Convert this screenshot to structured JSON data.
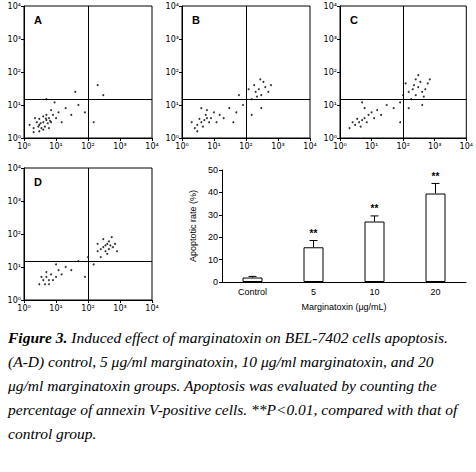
{
  "chart_data": [
    {
      "type": "scatter",
      "title": "A",
      "log": true,
      "grid": false,
      "color": "#000000",
      "marker": "dot",
      "xlim": [
        1,
        10000
      ],
      "ylim": [
        1,
        10000
      ],
      "xticks": [
        {
          "value": 1,
          "label": "10⁰"
        },
        {
          "value": 10,
          "label": "10¹"
        },
        {
          "value": 100,
          "label": "10²"
        },
        {
          "value": 1000,
          "label": "10³"
        },
        {
          "value": 10000,
          "label": "10⁴"
        }
      ],
      "yticks": [
        {
          "value": 1,
          "label": "10⁰"
        },
        {
          "value": 10,
          "label": "10¹"
        },
        {
          "value": 100,
          "label": "10²"
        },
        {
          "value": 1000,
          "label": "10³"
        },
        {
          "value": 10000,
          "label": "10⁴"
        }
      ],
      "quadrant": {
        "x": 100,
        "y": 15
      },
      "points": [
        [
          2,
          2
        ],
        [
          3,
          2.5
        ],
        [
          4,
          3
        ],
        [
          5,
          3.5
        ],
        [
          3.5,
          2
        ],
        [
          6,
          4
        ],
        [
          2.5,
          3
        ],
        [
          4.5,
          2.2
        ],
        [
          5.5,
          2.8
        ],
        [
          3,
          3.8
        ],
        [
          7,
          3
        ],
        [
          4,
          4.5
        ],
        [
          2,
          1.5
        ],
        [
          6,
          2
        ],
        [
          8,
          5
        ],
        [
          3,
          1.6
        ],
        [
          5,
          5
        ],
        [
          10,
          4
        ],
        [
          2.2,
          4
        ],
        [
          4,
          1.8
        ],
        [
          12,
          6
        ],
        [
          7,
          7
        ],
        [
          15,
          3
        ],
        [
          20,
          8
        ],
        [
          30,
          5
        ],
        [
          50,
          10
        ],
        [
          9,
          12
        ],
        [
          150,
          3
        ],
        [
          300,
          20
        ],
        [
          5,
          15
        ],
        [
          1.5,
          2.5
        ],
        [
          6.5,
          3.3
        ],
        [
          3.3,
          2.8
        ],
        [
          4.8,
          3.9
        ],
        [
          2.8,
          2.2
        ],
        [
          40,
          25
        ],
        [
          80,
          6
        ],
        [
          200,
          40
        ]
      ]
    },
    {
      "type": "scatter",
      "title": "B",
      "log": true,
      "grid": false,
      "color": "#000000",
      "marker": "dot",
      "xlim": [
        1,
        10000
      ],
      "ylim": [
        1,
        10000
      ],
      "xticks": [
        {
          "value": 1,
          "label": "10⁰"
        },
        {
          "value": 10,
          "label": "10¹"
        },
        {
          "value": 100,
          "label": "10²"
        },
        {
          "value": 1000,
          "label": "10³"
        },
        {
          "value": 10000,
          "label": "10⁴"
        }
      ],
      "yticks": [
        {
          "value": 1,
          "label": "10⁰"
        },
        {
          "value": 10,
          "label": "10¹"
        },
        {
          "value": 100,
          "label": "10²"
        },
        {
          "value": 1000,
          "label": "10³"
        },
        {
          "value": 10000,
          "label": "10⁴"
        }
      ],
      "quadrant": {
        "x": 100,
        "y": 15
      },
      "points": [
        [
          3,
          2.5
        ],
        [
          4,
          3
        ],
        [
          5,
          3.5
        ],
        [
          2.5,
          2
        ],
        [
          6,
          4
        ],
        [
          3.5,
          3.8
        ],
        [
          7,
          3
        ],
        [
          4.5,
          2.2
        ],
        [
          2,
          3
        ],
        [
          5.5,
          5
        ],
        [
          8,
          4
        ],
        [
          10,
          6
        ],
        [
          3,
          1.6
        ],
        [
          12,
          3
        ],
        [
          6,
          7
        ],
        [
          15,
          5
        ],
        [
          20,
          4
        ],
        [
          30,
          8
        ],
        [
          50,
          6
        ],
        [
          80,
          10
        ],
        [
          150,
          15
        ],
        [
          200,
          25
        ],
        [
          250,
          30
        ],
        [
          300,
          20
        ],
        [
          400,
          35
        ],
        [
          180,
          40
        ],
        [
          350,
          50
        ],
        [
          500,
          25
        ],
        [
          120,
          30
        ],
        [
          220,
          18
        ],
        [
          280,
          60
        ],
        [
          600,
          40
        ],
        [
          150,
          5
        ],
        [
          300,
          8
        ],
        [
          60,
          20
        ],
        [
          40,
          3
        ],
        [
          4,
          8
        ]
      ]
    },
    {
      "type": "scatter",
      "title": "C",
      "log": true,
      "grid": false,
      "color": "#000000",
      "marker": "dot",
      "xlim": [
        1,
        10000
      ],
      "ylim": [
        1,
        10000
      ],
      "xticks": [
        {
          "value": 1,
          "label": "10⁰"
        },
        {
          "value": 10,
          "label": "10¹"
        },
        {
          "value": 100,
          "label": "10²"
        },
        {
          "value": 1000,
          "label": "10³"
        },
        {
          "value": 10000,
          "label": "10⁴"
        }
      ],
      "yticks": [
        {
          "value": 1,
          "label": "10⁰"
        },
        {
          "value": 10,
          "label": "10¹"
        },
        {
          "value": 100,
          "label": "10²"
        },
        {
          "value": 1000,
          "label": "10³"
        },
        {
          "value": 10000,
          "label": "10⁴"
        }
      ],
      "quadrant": {
        "x": 100,
        "y": 15
      },
      "points": [
        [
          3,
          2.5
        ],
        [
          4,
          3
        ],
        [
          5,
          3.5
        ],
        [
          6,
          4
        ],
        [
          3.5,
          3.8
        ],
        [
          7,
          3
        ],
        [
          4.5,
          2.2
        ],
        [
          2.5,
          3
        ],
        [
          8,
          5
        ],
        [
          10,
          6
        ],
        [
          6,
          8
        ],
        [
          12,
          4
        ],
        [
          15,
          7
        ],
        [
          20,
          5
        ],
        [
          30,
          10
        ],
        [
          50,
          8
        ],
        [
          80,
          12
        ],
        [
          100,
          20
        ],
        [
          150,
          25
        ],
        [
          200,
          30
        ],
        [
          250,
          20
        ],
        [
          300,
          35
        ],
        [
          400,
          25
        ],
        [
          350,
          50
        ],
        [
          500,
          30
        ],
        [
          250,
          60
        ],
        [
          180,
          15
        ],
        [
          600,
          45
        ],
        [
          300,
          80
        ],
        [
          450,
          18
        ],
        [
          220,
          40
        ],
        [
          700,
          60
        ],
        [
          150,
          8
        ],
        [
          400,
          10
        ],
        [
          120,
          45
        ],
        [
          80,
          3
        ],
        [
          5,
          12
        ],
        [
          2,
          2
        ]
      ]
    },
    {
      "type": "scatter",
      "title": "D",
      "log": true,
      "grid": false,
      "color": "#000000",
      "marker": "dot",
      "xlim": [
        1,
        10000
      ],
      "ylim": [
        1,
        10000
      ],
      "xticks": [
        {
          "value": 1,
          "label": "10⁰"
        },
        {
          "value": 10,
          "label": "10¹"
        },
        {
          "value": 100,
          "label": "10²"
        },
        {
          "value": 1000,
          "label": "10³"
        },
        {
          "value": 10000,
          "label": "10⁴"
        }
      ],
      "yticks": [
        {
          "value": 1,
          "label": "10⁰"
        },
        {
          "value": 10,
          "label": "10¹"
        },
        {
          "value": 100,
          "label": "10²"
        },
        {
          "value": 1000,
          "label": "10³"
        },
        {
          "value": 10000,
          "label": "10⁴"
        }
      ],
      "quadrant": {
        "x": 100,
        "y": 15
      },
      "points": [
        [
          3,
          3
        ],
        [
          4,
          4
        ],
        [
          5,
          5
        ],
        [
          6,
          4
        ],
        [
          4.5,
          3
        ],
        [
          7,
          6
        ],
        [
          3.5,
          5
        ],
        [
          8,
          4
        ],
        [
          5,
          7
        ],
        [
          10,
          5
        ],
        [
          6,
          3
        ],
        [
          12,
          8
        ],
        [
          15,
          6
        ],
        [
          20,
          10
        ],
        [
          30,
          8
        ],
        [
          50,
          15
        ],
        [
          100,
          20
        ],
        [
          200,
          30
        ],
        [
          300,
          40
        ],
        [
          400,
          50
        ],
        [
          350,
          30
        ],
        [
          500,
          45
        ],
        [
          450,
          60
        ],
        [
          250,
          35
        ],
        [
          600,
          40
        ],
        [
          400,
          25
        ],
        [
          300,
          70
        ],
        [
          550,
          80
        ],
        [
          700,
          50
        ],
        [
          200,
          50
        ],
        [
          350,
          45
        ],
        [
          450,
          35
        ],
        [
          800,
          30
        ],
        [
          250,
          20
        ],
        [
          150,
          12
        ],
        [
          80,
          5
        ],
        [
          10,
          12
        ]
      ]
    },
    {
      "type": "bar",
      "grid": false,
      "color": "#ffffff",
      "categories": [
        "Control",
        "5",
        "10",
        "20"
      ],
      "values": [
        2,
        15.5,
        27,
        39.5
      ],
      "errors": [
        0.5,
        3,
        2.5,
        4.5
      ],
      "annotations": [
        null,
        "**",
        "**",
        "**"
      ],
      "xlabel": "Marginatoxin (μg/mL)",
      "ylabel": "Apoptotic rate (%)",
      "ylim": [
        0,
        50
      ],
      "yticks": [
        0,
        10,
        20,
        30,
        40,
        50
      ]
    }
  ],
  "caption": {
    "label": "Figure 3.",
    "text": "Induced effect of marginatoxin on BEL-7402 cells apoptosis. (A-D) control, 5 μg/ml marginatoxin, 10 μg/ml marginatoxin, and 20 μg/ml marginatoxin groups. Apoptosis was evaluated by counting the percentage of annexin V-positive cells. **P<0.01, compared with that of control group."
  }
}
